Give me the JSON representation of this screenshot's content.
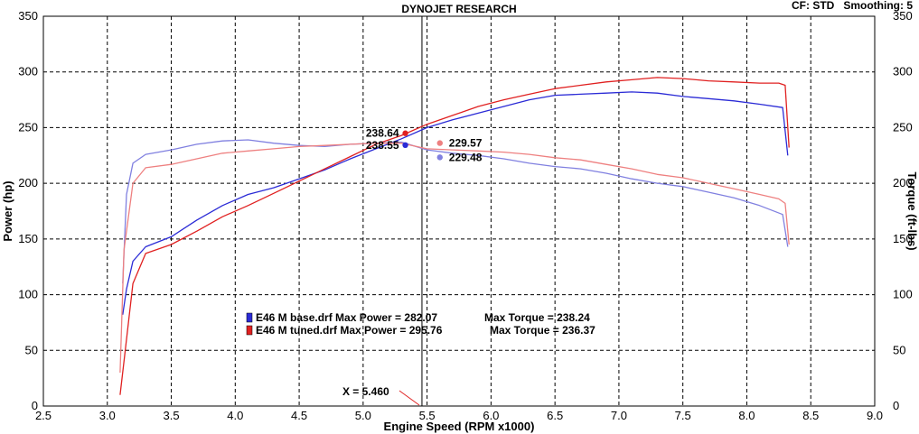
{
  "header": {
    "title": "DYNOJET RESEARCH",
    "settings": "CF: STD   Smoothing: 5"
  },
  "colors": {
    "base": "#2b2bd6",
    "base_light": "#8080e0",
    "tuned": "#e02020",
    "tuned_light": "#ee8080"
  },
  "chart_data": {
    "type": "line",
    "xlabel": "Engine Speed (RPM x1000)",
    "ylabel_left": "Power (hp)",
    "ylabel_right": "Torque (ft-lbs)",
    "xlim": [
      2.5,
      9.0
    ],
    "ylim": [
      0,
      350
    ],
    "x_ticks": [
      "2.5",
      "3.0",
      "3.5",
      "4.0",
      "4.5",
      "5.0",
      "5.5",
      "6.0",
      "6.5",
      "7.0",
      "7.5",
      "8.0",
      "8.5",
      "9.0"
    ],
    "y_ticks": [
      "0",
      "50",
      "100",
      "150",
      "200",
      "250",
      "300",
      "350"
    ],
    "grid": true,
    "series": [
      {
        "name": "E46 M base.drf",
        "measure": "Power",
        "color_key": "base",
        "x": [
          3.12,
          3.15,
          3.2,
          3.3,
          3.5,
          3.7,
          3.9,
          4.1,
          4.3,
          4.5,
          4.7,
          4.9,
          5.1,
          5.3,
          5.5,
          5.7,
          5.9,
          6.1,
          6.3,
          6.5,
          6.7,
          6.9,
          7.1,
          7.3,
          7.5,
          7.7,
          7.9,
          8.1,
          8.28,
          8.32
        ],
        "y": [
          82,
          105,
          130,
          143,
          152,
          167,
          180,
          190,
          196,
          204,
          212,
          222,
          231,
          240,
          250,
          257,
          263,
          269,
          275,
          279,
          280,
          281,
          282,
          281,
          278,
          276,
          274,
          271,
          268,
          225
        ]
      },
      {
        "name": "E46 M tuned.drf",
        "measure": "Power",
        "color_key": "tuned",
        "x": [
          3.1,
          3.13,
          3.2,
          3.3,
          3.5,
          3.7,
          3.9,
          4.1,
          4.3,
          4.5,
          4.7,
          4.9,
          5.1,
          5.3,
          5.5,
          5.7,
          5.9,
          6.1,
          6.3,
          6.5,
          6.7,
          6.9,
          7.1,
          7.3,
          7.5,
          7.7,
          7.9,
          8.1,
          8.25,
          8.3,
          8.33
        ],
        "y": [
          10,
          40,
          110,
          137,
          145,
          157,
          170,
          180,
          191,
          202,
          213,
          224,
          235,
          243,
          253,
          261,
          269,
          275,
          280,
          285,
          288,
          291,
          293,
          295,
          294,
          292,
          291,
          290,
          290,
          288,
          232
        ]
      },
      {
        "name": "E46 M base.drf",
        "measure": "Torque",
        "color_key": "base_light",
        "x": [
          3.12,
          3.15,
          3.2,
          3.3,
          3.5,
          3.7,
          3.9,
          4.1,
          4.3,
          4.5,
          4.7,
          4.9,
          5.1,
          5.3,
          5.5,
          5.7,
          5.9,
          6.1,
          6.3,
          6.5,
          6.7,
          6.9,
          7.1,
          7.3,
          7.5,
          7.7,
          7.9,
          8.1,
          8.28,
          8.32
        ],
        "y": [
          110,
          190,
          218,
          226,
          230,
          235,
          238,
          239,
          236,
          234,
          233,
          235,
          236,
          237,
          230,
          227,
          225,
          222,
          218,
          215,
          213,
          209,
          204,
          200,
          197,
          192,
          187,
          180,
          172,
          143
        ]
      },
      {
        "name": "E46 M tuned.drf",
        "measure": "Torque",
        "color_key": "tuned_light",
        "x": [
          3.1,
          3.13,
          3.2,
          3.3,
          3.5,
          3.7,
          3.9,
          4.1,
          4.3,
          4.5,
          4.7,
          4.9,
          5.1,
          5.3,
          5.5,
          5.7,
          5.9,
          6.1,
          6.3,
          6.5,
          6.7,
          6.9,
          7.1,
          7.3,
          7.5,
          7.7,
          7.9,
          8.1,
          8.25,
          8.3,
          8.33
        ],
        "y": [
          30,
          140,
          200,
          214,
          217,
          222,
          227,
          229,
          231,
          233,
          234,
          235,
          236,
          236,
          231,
          230,
          229,
          228,
          226,
          223,
          221,
          217,
          213,
          208,
          205,
          200,
          195,
          190,
          186,
          182,
          145
        ]
      }
    ],
    "markers": [
      {
        "x": 5.33,
        "y": 244.9,
        "label": "238.64",
        "color_key": "tuned"
      },
      {
        "x": 5.33,
        "y": 234.3,
        "label": "238.55",
        "color_key": "base"
      },
      {
        "x": 5.6,
        "y": 236.1,
        "label": "229.57",
        "color_key": "tuned_light"
      },
      {
        "x": 5.6,
        "y": 223.3,
        "label": "229.48",
        "color_key": "base_light"
      }
    ],
    "cursor": {
      "x": 5.46,
      "label": "X = 5.460"
    },
    "legend": {
      "placement": "center-left",
      "entries": [
        {
          "text": "E46 M base.drf Max Power = 282.07",
          "torque": "Max Torque = 238.24",
          "color_key": "base"
        },
        {
          "text": "E46 M tuned.drf Max Power = 295.76",
          "torque": "Max Torque = 236.37",
          "color_key": "tuned"
        }
      ]
    }
  }
}
